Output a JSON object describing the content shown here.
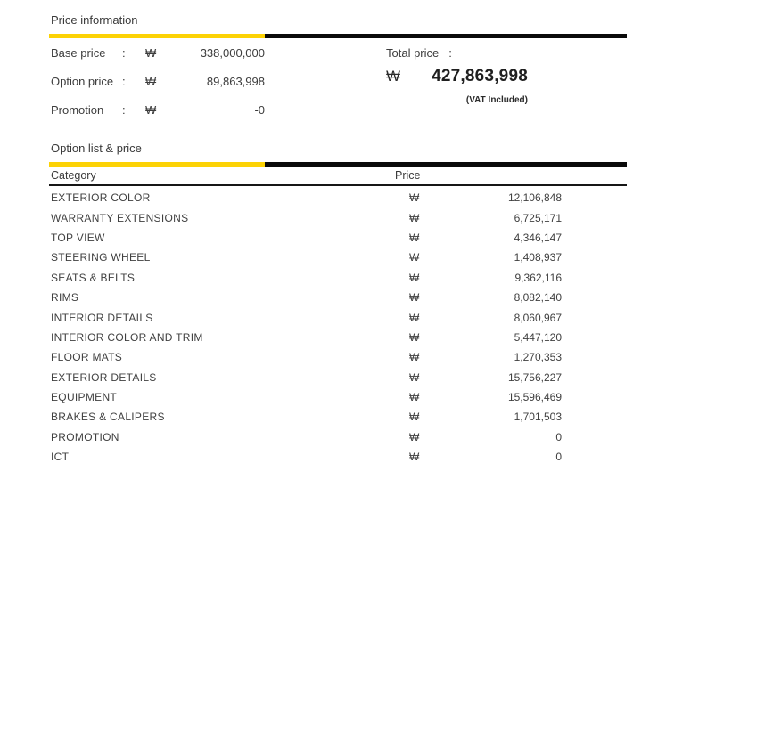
{
  "colors": {
    "accent_yellow": "#fcd205",
    "bar_black": "#0a0a0a",
    "text": "#3d3d3d"
  },
  "price_information": {
    "title": "Price information",
    "rows": [
      {
        "label": "Base price",
        "colon": ":",
        "currency": "₩",
        "value": "338,000,000"
      },
      {
        "label": "Option price",
        "colon": ":",
        "currency": "₩",
        "value": "89,863,998"
      },
      {
        "label": "Promotion",
        "colon": ":",
        "currency": "₩",
        "value": "-0"
      }
    ],
    "total": {
      "label": "Total price",
      "colon": ":",
      "currency": "₩",
      "value": "427,863,998",
      "note": "(VAT Included)"
    }
  },
  "option_list": {
    "title": "Option list & price",
    "columns": {
      "category": "Category",
      "price": "Price"
    },
    "currency": "₩",
    "rows": [
      {
        "category": "EXTERIOR COLOR",
        "price": "12,106,848"
      },
      {
        "category": "WARRANTY EXTENSIONS",
        "price": "6,725,171"
      },
      {
        "category": "TOP VIEW",
        "price": "4,346,147"
      },
      {
        "category": "STEERING WHEEL",
        "price": "1,408,937"
      },
      {
        "category": "SEATS & BELTS",
        "price": "9,362,116"
      },
      {
        "category": "RIMS",
        "price": "8,082,140"
      },
      {
        "category": "INTERIOR DETAILS",
        "price": "8,060,967"
      },
      {
        "category": "INTERIOR COLOR AND TRIM",
        "price": "5,447,120"
      },
      {
        "category": "FLOOR MATS",
        "price": "1,270,353"
      },
      {
        "category": "EXTERIOR DETAILS",
        "price": "15,756,227"
      },
      {
        "category": "EQUIPMENT",
        "price": "15,596,469"
      },
      {
        "category": "BRAKES & CALIPERS",
        "price": "1,701,503"
      },
      {
        "category": "PROMOTION",
        "price": "0"
      },
      {
        "category": "ICT",
        "price": "0"
      }
    ]
  }
}
